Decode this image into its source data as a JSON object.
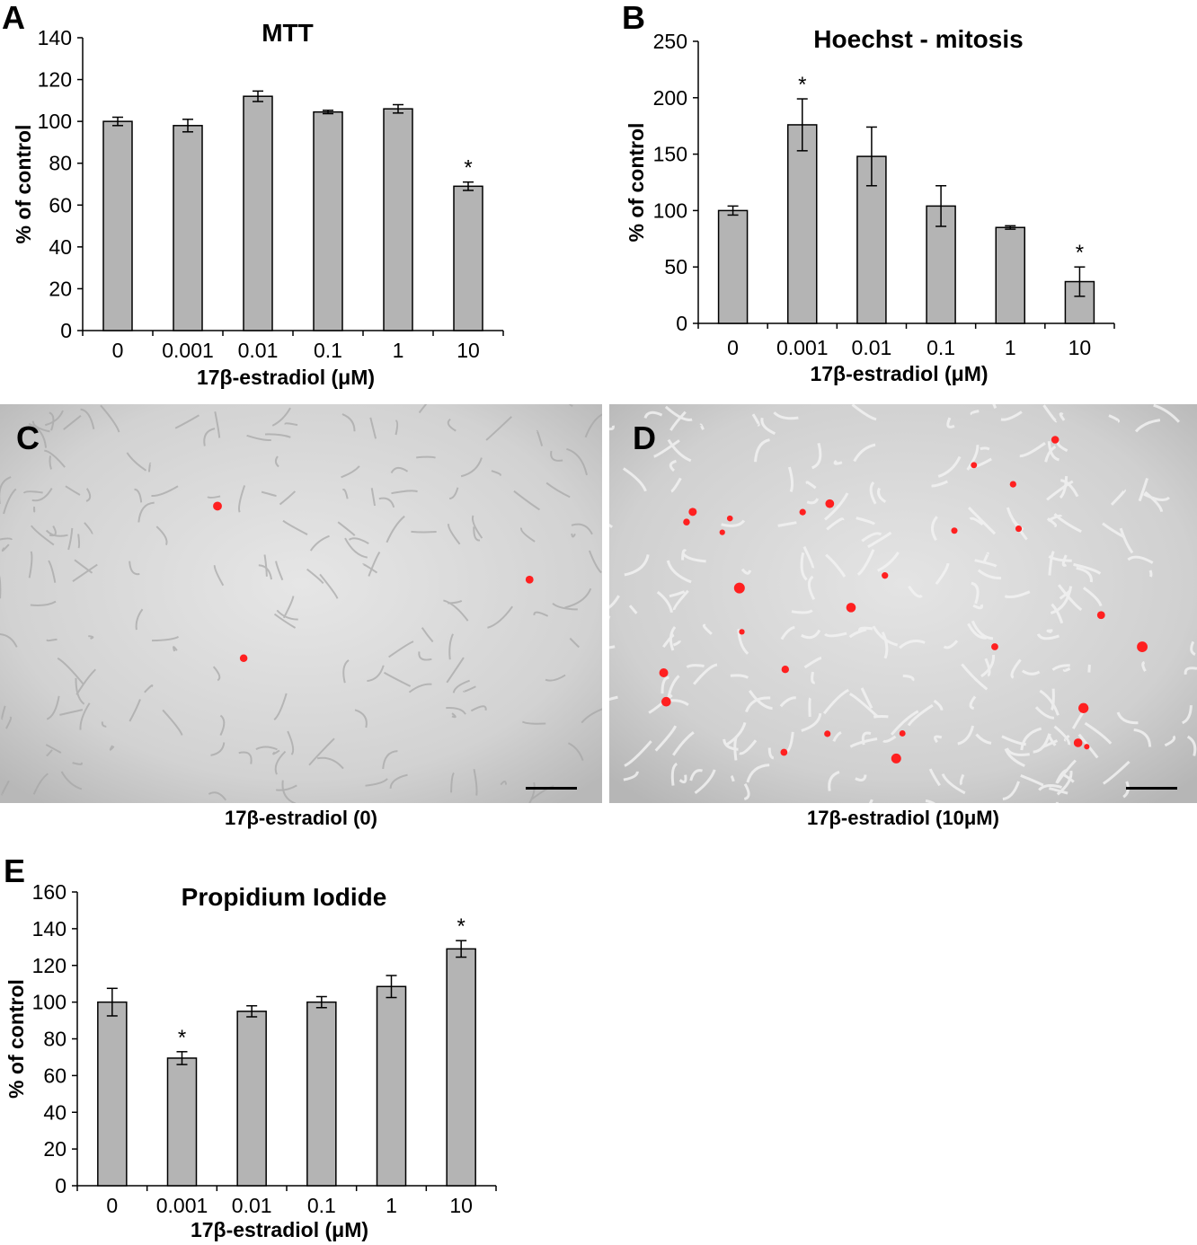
{
  "panels": {
    "A": {
      "letter": "A"
    },
    "B": {
      "letter": "B"
    },
    "C": {
      "letter": "C",
      "caption": "17β-estradiol (0)"
    },
    "D": {
      "letter": "D",
      "caption": "17β-estradiol (10μM)"
    },
    "E": {
      "letter": "E"
    }
  },
  "colors": {
    "bar_fill": "#b4b4b4",
    "bar_stroke": "#000000",
    "cell_marker": "#ff2020"
  },
  "chart_data": [
    {
      "id": "A",
      "type": "bar",
      "title": "MTT",
      "xlabel": "17β-estradiol (μM)",
      "ylabel": "% of control",
      "categories": [
        "0",
        "0.001",
        "0.01",
        "0.1",
        "1",
        "10"
      ],
      "values": [
        100,
        98,
        112,
        104.5,
        106,
        69
      ],
      "errors": [
        2,
        3,
        2.5,
        0.8,
        2,
        2
      ],
      "significant": [
        false,
        false,
        false,
        false,
        false,
        true
      ],
      "significance_marker": "*",
      "ylim": [
        0,
        140
      ],
      "yticks": [
        0,
        20,
        40,
        60,
        80,
        100,
        120,
        140
      ]
    },
    {
      "id": "B",
      "type": "bar",
      "title": "Hoechst - mitosis",
      "xlabel": "17β-estradiol (μM)",
      "ylabel": "% of control",
      "categories": [
        "0",
        "0.001",
        "0.01",
        "0.1",
        "1",
        "10"
      ],
      "values": [
        100,
        176,
        148,
        104,
        85,
        37
      ],
      "errors": [
        4,
        23,
        26,
        18,
        1.5,
        13
      ],
      "significant": [
        false,
        true,
        false,
        false,
        false,
        true
      ],
      "significance_marker": "*",
      "ylim": [
        0,
        250
      ],
      "yticks": [
        0,
        50,
        100,
        150,
        200,
        250
      ]
    },
    {
      "id": "E",
      "type": "bar",
      "title": "Propidium Iodide",
      "xlabel": "17β-estradiol (μM)",
      "ylabel": "% of control",
      "categories": [
        "0",
        "0.001",
        "0.01",
        "0.1",
        "1",
        "10"
      ],
      "values": [
        100,
        69.5,
        95,
        100,
        108.5,
        129
      ],
      "errors": [
        7.5,
        3.5,
        3,
        3,
        6,
        4.5
      ],
      "significant": [
        false,
        true,
        false,
        false,
        false,
        true
      ],
      "significance_marker": "*",
      "ylim": [
        0,
        160
      ],
      "yticks": [
        0,
        20,
        40,
        60,
        80,
        100,
        120,
        140,
        160
      ]
    }
  ]
}
